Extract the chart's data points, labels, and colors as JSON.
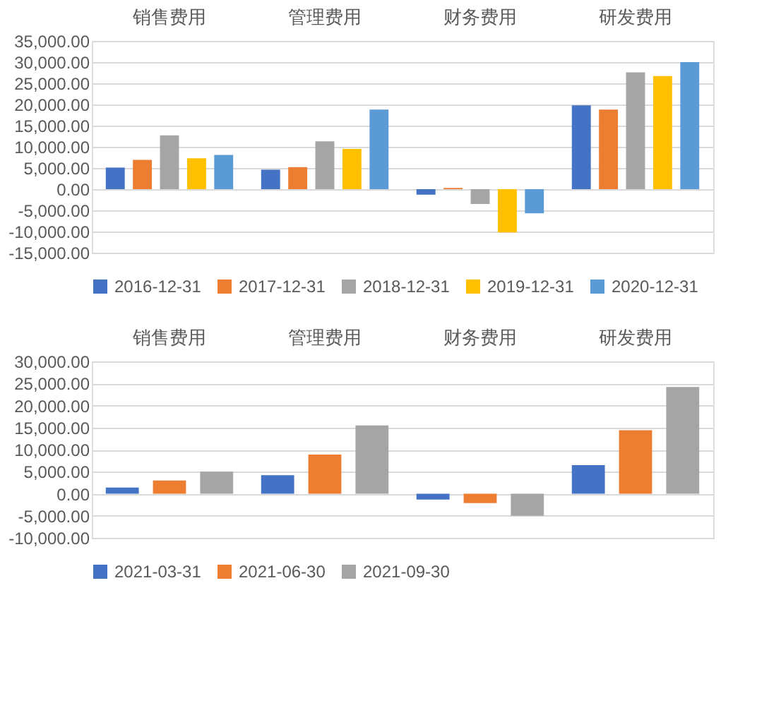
{
  "chart_data": [
    {
      "type": "bar",
      "categories": [
        "销售费用",
        "管理费用",
        "财务费用",
        "研发费用"
      ],
      "series": [
        {
          "name": "2016-12-31",
          "color": "#4472c4",
          "values": [
            5100,
            4600,
            -1300,
            19800
          ]
        },
        {
          "name": "2017-12-31",
          "color": "#ed7d31",
          "values": [
            6900,
            5200,
            300,
            18800
          ]
        },
        {
          "name": "2018-12-31",
          "color": "#a5a5a5",
          "values": [
            12700,
            11300,
            -3500,
            27600
          ]
        },
        {
          "name": "2019-12-31",
          "color": "#ffc000",
          "values": [
            7300,
            9500,
            -10200,
            26700
          ]
        },
        {
          "name": "2020-12-31",
          "color": "#5b9bd5",
          "values": [
            8100,
            18800,
            -5700,
            30000
          ]
        }
      ],
      "ylim": [
        -15000,
        35000
      ],
      "yticks": [
        {
          "value": -15000,
          "label": "-15,000.00"
        },
        {
          "value": -10000,
          "label": "-10,000.00"
        },
        {
          "value": -5000,
          "label": "-5,000.00"
        },
        {
          "value": 0,
          "label": "0.00"
        },
        {
          "value": 5000,
          "label": "5,000.00"
        },
        {
          "value": 10000,
          "label": "10,000.00"
        },
        {
          "value": 15000,
          "label": "15,000.00"
        },
        {
          "value": 20000,
          "label": "20,000.00"
        },
        {
          "value": 25000,
          "label": "25,000.00"
        },
        {
          "value": 30000,
          "label": "30,000.00"
        },
        {
          "value": 35000,
          "label": "35,000.00"
        }
      ],
      "grid": "y",
      "legend": "bottom"
    },
    {
      "type": "bar",
      "categories": [
        "销售费用",
        "管理费用",
        "财务费用",
        "研发费用"
      ],
      "series": [
        {
          "name": "2021-03-31",
          "color": "#4472c4",
          "values": [
            1400,
            4200,
            -1300,
            6500
          ]
        },
        {
          "name": "2021-06-30",
          "color": "#ed7d31",
          "values": [
            3000,
            8900,
            -2100,
            14400
          ]
        },
        {
          "name": "2021-09-30",
          "color": "#a5a5a5",
          "values": [
            5000,
            15500,
            -5000,
            24200
          ]
        }
      ],
      "ylim": [
        -10000,
        30000
      ],
      "yticks": [
        {
          "value": -10000,
          "label": "-10,000.00"
        },
        {
          "value": -5000,
          "label": "-5,000.00"
        },
        {
          "value": 0,
          "label": "0.00"
        },
        {
          "value": 5000,
          "label": "5,000.00"
        },
        {
          "value": 10000,
          "label": "10,000.00"
        },
        {
          "value": 15000,
          "label": "15,000.00"
        },
        {
          "value": 20000,
          "label": "20,000.00"
        },
        {
          "value": 25000,
          "label": "25,000.00"
        },
        {
          "value": 30000,
          "label": "30,000.00"
        }
      ],
      "grid": "y",
      "legend": "bottom"
    }
  ]
}
